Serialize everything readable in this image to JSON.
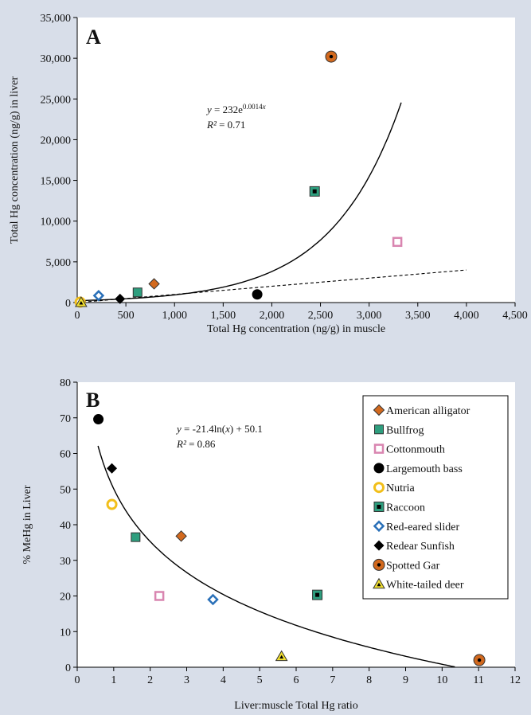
{
  "colors": {
    "background": "#d8dee9",
    "plot_area": "#ffffff",
    "american_alligator": "#d2691e",
    "bullfrog": "#2e9e7e",
    "cottonmouth": "#d985b0",
    "largemouth_bass": "#000000",
    "nutria": "#f2bf1a",
    "raccoon": "#2e9e7e",
    "red_eared_slider": "#2a70b8",
    "redear_sunfish": "#000000",
    "spotted_gar": "#d2691e",
    "white_tailed_deer": "#f2e030"
  },
  "chart_data": [
    {
      "type": "scatter",
      "panel_label": "A",
      "xlabel": "Total Hg concentration (ng/g) in muscle",
      "ylabel": "Total Hg  concentration (ng/g) in liver",
      "xlim": [
        0,
        4500
      ],
      "ylim": [
        0,
        35000
      ],
      "xticks": [
        0,
        500,
        1000,
        1500,
        2000,
        2500,
        3000,
        3500,
        4000,
        4500
      ],
      "xtick_labels": [
        "0",
        "500",
        "1,000",
        "1,500",
        "2,000",
        "2,500",
        "3,000",
        "3,500",
        "4,000",
        "4,500"
      ],
      "yticks": [
        0,
        5000,
        10000,
        15000,
        20000,
        25000,
        30000,
        35000
      ],
      "ytick_labels": [
        "0",
        "5,000",
        "10,000",
        "15,000",
        "20,000",
        "25,000",
        "30,000",
        "35,000"
      ],
      "grid": false,
      "legend": "none",
      "equation": "y = 232e^(0.0014x)",
      "r_squared": "R² = 0.71",
      "fit": {
        "type": "exponential",
        "a": 232,
        "b": 0.0014,
        "x_range": [
          0,
          3330
        ]
      },
      "reference_line": {
        "style": "dashed",
        "x_range": [
          0,
          4000
        ],
        "y_range": [
          0,
          4000
        ]
      },
      "series": [
        {
          "name": "American alligator",
          "marker": "diamond-filled",
          "x": [
            790
          ],
          "y": [
            2300
          ]
        },
        {
          "name": "Bullfrog",
          "marker": "square-filled",
          "x": [
            620
          ],
          "y": [
            1250
          ]
        },
        {
          "name": "Cottonmouth",
          "marker": "square-open",
          "x": [
            3290
          ],
          "y": [
            7450
          ]
        },
        {
          "name": "Largemouth bass",
          "marker": "circle-filled",
          "x": [
            1850
          ],
          "y": [
            1000
          ]
        },
        {
          "name": "Nutria",
          "marker": "circle-open",
          "x": [
            30
          ],
          "y": [
            50
          ]
        },
        {
          "name": "Raccoon",
          "marker": "square-dot",
          "x": [
            2440
          ],
          "y": [
            13650
          ]
        },
        {
          "name": "Red-eared slider",
          "marker": "diamond-open",
          "x": [
            220
          ],
          "y": [
            850
          ]
        },
        {
          "name": "Redear Sunfish",
          "marker": "diamond-black",
          "x": [
            440
          ],
          "y": [
            450
          ]
        },
        {
          "name": "Spotted Gar",
          "marker": "circle-dot",
          "x": [
            2610
          ],
          "y": [
            30200
          ]
        },
        {
          "name": "White-tailed deer",
          "marker": "triangle",
          "x": [
            40
          ],
          "y": [
            0
          ]
        }
      ]
    },
    {
      "type": "scatter",
      "panel_label": "B",
      "xlabel": "Liver:muscle Total Hg ratio",
      "ylabel": "% MeHg in Liver",
      "xlim": [
        0,
        12
      ],
      "ylim": [
        0,
        80
      ],
      "xticks": [
        0,
        1,
        2,
        3,
        4,
        5,
        6,
        7,
        8,
        9,
        10,
        11,
        12
      ],
      "xtick_labels": [
        "0",
        "1",
        "2",
        "3",
        "4",
        "5",
        "6",
        "7",
        "8",
        "9",
        "10",
        "11",
        "12"
      ],
      "yticks": [
        0,
        10,
        20,
        30,
        40,
        50,
        60,
        70,
        80
      ],
      "ytick_labels": [
        "0",
        "10",
        "20",
        "30",
        "40",
        "50",
        "60",
        "70",
        "80"
      ],
      "grid": false,
      "legend": "top-right",
      "equation": "y = -21.4ln(x) + 50.1",
      "r_squared": "R² = 0.86",
      "fit": {
        "type": "logarithmic",
        "a": -21.4,
        "b": 50.1,
        "x_range": [
          0.57,
          10.35
        ]
      },
      "series": [
        {
          "name": "American alligator",
          "marker": "diamond-filled",
          "x": [
            2.85
          ],
          "y": [
            36.8
          ]
        },
        {
          "name": "Bullfrog",
          "marker": "square-filled",
          "x": [
            1.6
          ],
          "y": [
            36.5
          ]
        },
        {
          "name": "Cottonmouth",
          "marker": "square-open",
          "x": [
            2.25
          ],
          "y": [
            20
          ]
        },
        {
          "name": "Largemouth bass",
          "marker": "circle-filled",
          "x": [
            0.58
          ],
          "y": [
            69.6
          ]
        },
        {
          "name": "Nutria",
          "marker": "circle-open",
          "x": [
            0.95
          ],
          "y": [
            45.7
          ]
        },
        {
          "name": "Raccoon",
          "marker": "square-dot",
          "x": [
            6.58
          ],
          "y": [
            20.3
          ]
        },
        {
          "name": "Red-eared slider",
          "marker": "diamond-open",
          "x": [
            3.72
          ],
          "y": [
            19
          ]
        },
        {
          "name": "Redear Sunfish",
          "marker": "diamond-black",
          "x": [
            0.95
          ],
          "y": [
            55.8
          ]
        },
        {
          "name": "Spotted Gar",
          "marker": "circle-dot",
          "x": [
            11.02
          ],
          "y": [
            2
          ]
        },
        {
          "name": "White-tailed deer",
          "marker": "triangle",
          "x": [
            5.6
          ],
          "y": [
            3
          ]
        }
      ]
    }
  ]
}
